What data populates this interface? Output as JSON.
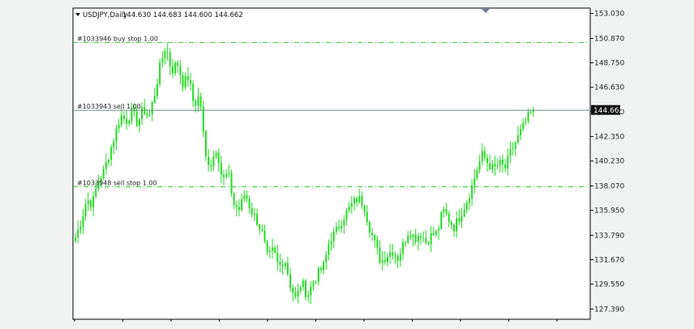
{
  "header": {
    "symbol_timeframe": "USDJPY,Daily",
    "ohlc": "144.630 144.683 144.600 144.662"
  },
  "current_price_label": "144.662",
  "colors": {
    "candle": "#22dd22",
    "order_line": "#33cc33",
    "current_price_line": "#6a8a8a",
    "price_label_bg": "#111111",
    "plot_bg": "#ffffff",
    "axis": "#000000"
  },
  "chart_data": {
    "type": "candlestick",
    "ylim": [
      126.5,
      153.5
    ],
    "y_ticks": [
      "153.030",
      "150.870",
      "148.750",
      "146.630",
      "144.510",
      "142.350",
      "140.230",
      "138.070",
      "135.950",
      "133.790",
      "131.670",
      "129.550",
      "127.390"
    ],
    "grid": false,
    "orders": [
      {
        "label": "#1033946 buy stop 1.00",
        "price": 150.52
      },
      {
        "label": "#1033943 sell 1.00",
        "price": 144.63
      },
      {
        "label": "#1033948 sell stop 1.00",
        "price": 138.0
      }
    ],
    "current_price": 144.662,
    "close_path": [
      133.6,
      135.0,
      136.9,
      136.5,
      138.5,
      139.3,
      140.9,
      142.5,
      144.2,
      143.7,
      144.5,
      143.5,
      144.8,
      144.0,
      146.0,
      148.5,
      150.3,
      148.0,
      148.8,
      147.0,
      147.5,
      145.0,
      146.0,
      140.5,
      140.0,
      141.5,
      138.5,
      139.2,
      136.5,
      136.0,
      137.5,
      136.0,
      135.2,
      134.0,
      131.8,
      132.5,
      131.0,
      131.8,
      129.5,
      128.2,
      129.8,
      128.5,
      129.7,
      130.5,
      131.2,
      133.5,
      134.0,
      135.0,
      135.8,
      136.5,
      137.0,
      136.5,
      134.5,
      133.0,
      131.5,
      132.0,
      132.5,
      131.8,
      133.0,
      134.3,
      133.5,
      134.0,
      133.2,
      133.8,
      134.0,
      136.0,
      135.2,
      134.5,
      135.5,
      136.5,
      137.8,
      139.5,
      140.8,
      140.0,
      139.5,
      140.0,
      139.6,
      141.0,
      142.0,
      143.0,
      144.0,
      144.66
    ],
    "candle_count": 180
  }
}
